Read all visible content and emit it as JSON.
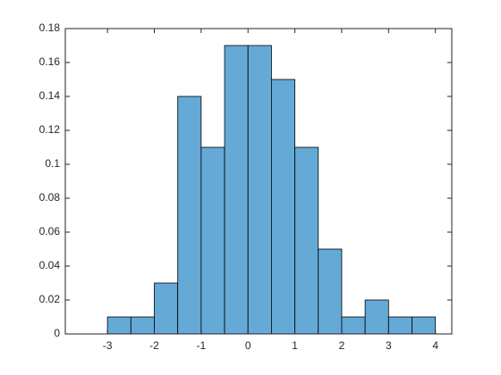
{
  "chart_data": {
    "type": "histogram",
    "bins": [
      -3,
      -2.5,
      -2,
      -1.5,
      -1,
      -0.5,
      0,
      0.5,
      1,
      1.5,
      2,
      2.5,
      3,
      3.5,
      4
    ],
    "values": [
      0.01,
      0.01,
      0.03,
      0.14,
      0.11,
      0.17,
      0.17,
      0.15,
      0.11,
      0.05,
      0.01,
      0.02,
      0.01,
      0.01
    ],
    "color": "#65a9d7",
    "xlim": [
      -3.9,
      4.35
    ],
    "xticks": [
      -3,
      -2,
      -1,
      0,
      1,
      2,
      3,
      4
    ],
    "ylim": [
      0,
      0.18
    ],
    "yticks": [
      0,
      0.02,
      0.04,
      0.06,
      0.08,
      0.1,
      0.12,
      0.14,
      0.16,
      0.18
    ]
  }
}
